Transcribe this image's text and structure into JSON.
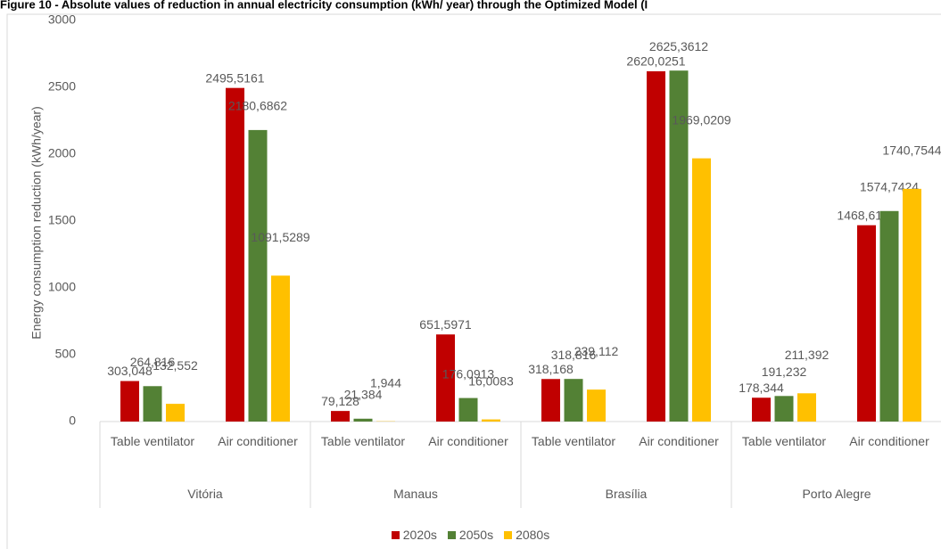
{
  "chart_data": {
    "type": "bar",
    "title": "Figure 10 - Absolute values of reduction in annual electricity consumption (kWh/ year) through the Optimized Model (I",
    "y_label": "Energy consumption reduction (kWh/year)",
    "groups": [
      "Vitória",
      "Manaus",
      "Brasília",
      "Porto Alegre"
    ],
    "categories": [
      "Table ventilator",
      "Air conditioner",
      "Table ventilator",
      "Air conditioner",
      "Table ventilator",
      "Air conditioner",
      "Table ventilator",
      "Air conditioner"
    ],
    "series": [
      {
        "name": "2020s",
        "color": "#c00000",
        "values": [
          303.048,
          2495.5161,
          79.128,
          651.5971,
          318.168,
          2620.0251,
          178.344,
          1468.6133
        ],
        "value_labels": [
          "303,048",
          "2495,5161",
          "79,128",
          "651,5971",
          "318,168",
          "2620,0251",
          "178,344",
          "1468,6133"
        ]
      },
      {
        "name": "2050s",
        "color": "#538135",
        "values": [
          264.816,
          2180.6862,
          21.384,
          176.0913,
          318.816,
          2625.3612,
          191.232,
          1574.7424
        ],
        "value_labels": [
          "264,816",
          "2180,6862",
          "21,384",
          "176,0913",
          "318,816",
          "2625,3612",
          "191,232",
          "1574,7424"
        ]
      },
      {
        "name": "2080s",
        "color": "#ffc000",
        "values": [
          132.552,
          1091.5289,
          1.944,
          16.0083,
          239.112,
          1969.0209,
          211.392,
          1740.7544
        ],
        "value_labels": [
          "132,552",
          "1091,5289",
          "1,944",
          "16,0083",
          "239,112",
          "1969,0209",
          "211,392",
          "1740,7544"
        ]
      }
    ],
    "ylim": [
      0,
      3000
    ],
    "yticks": [
      0,
      500,
      1000,
      1500,
      2000,
      2500,
      3000
    ],
    "grid": false
  }
}
